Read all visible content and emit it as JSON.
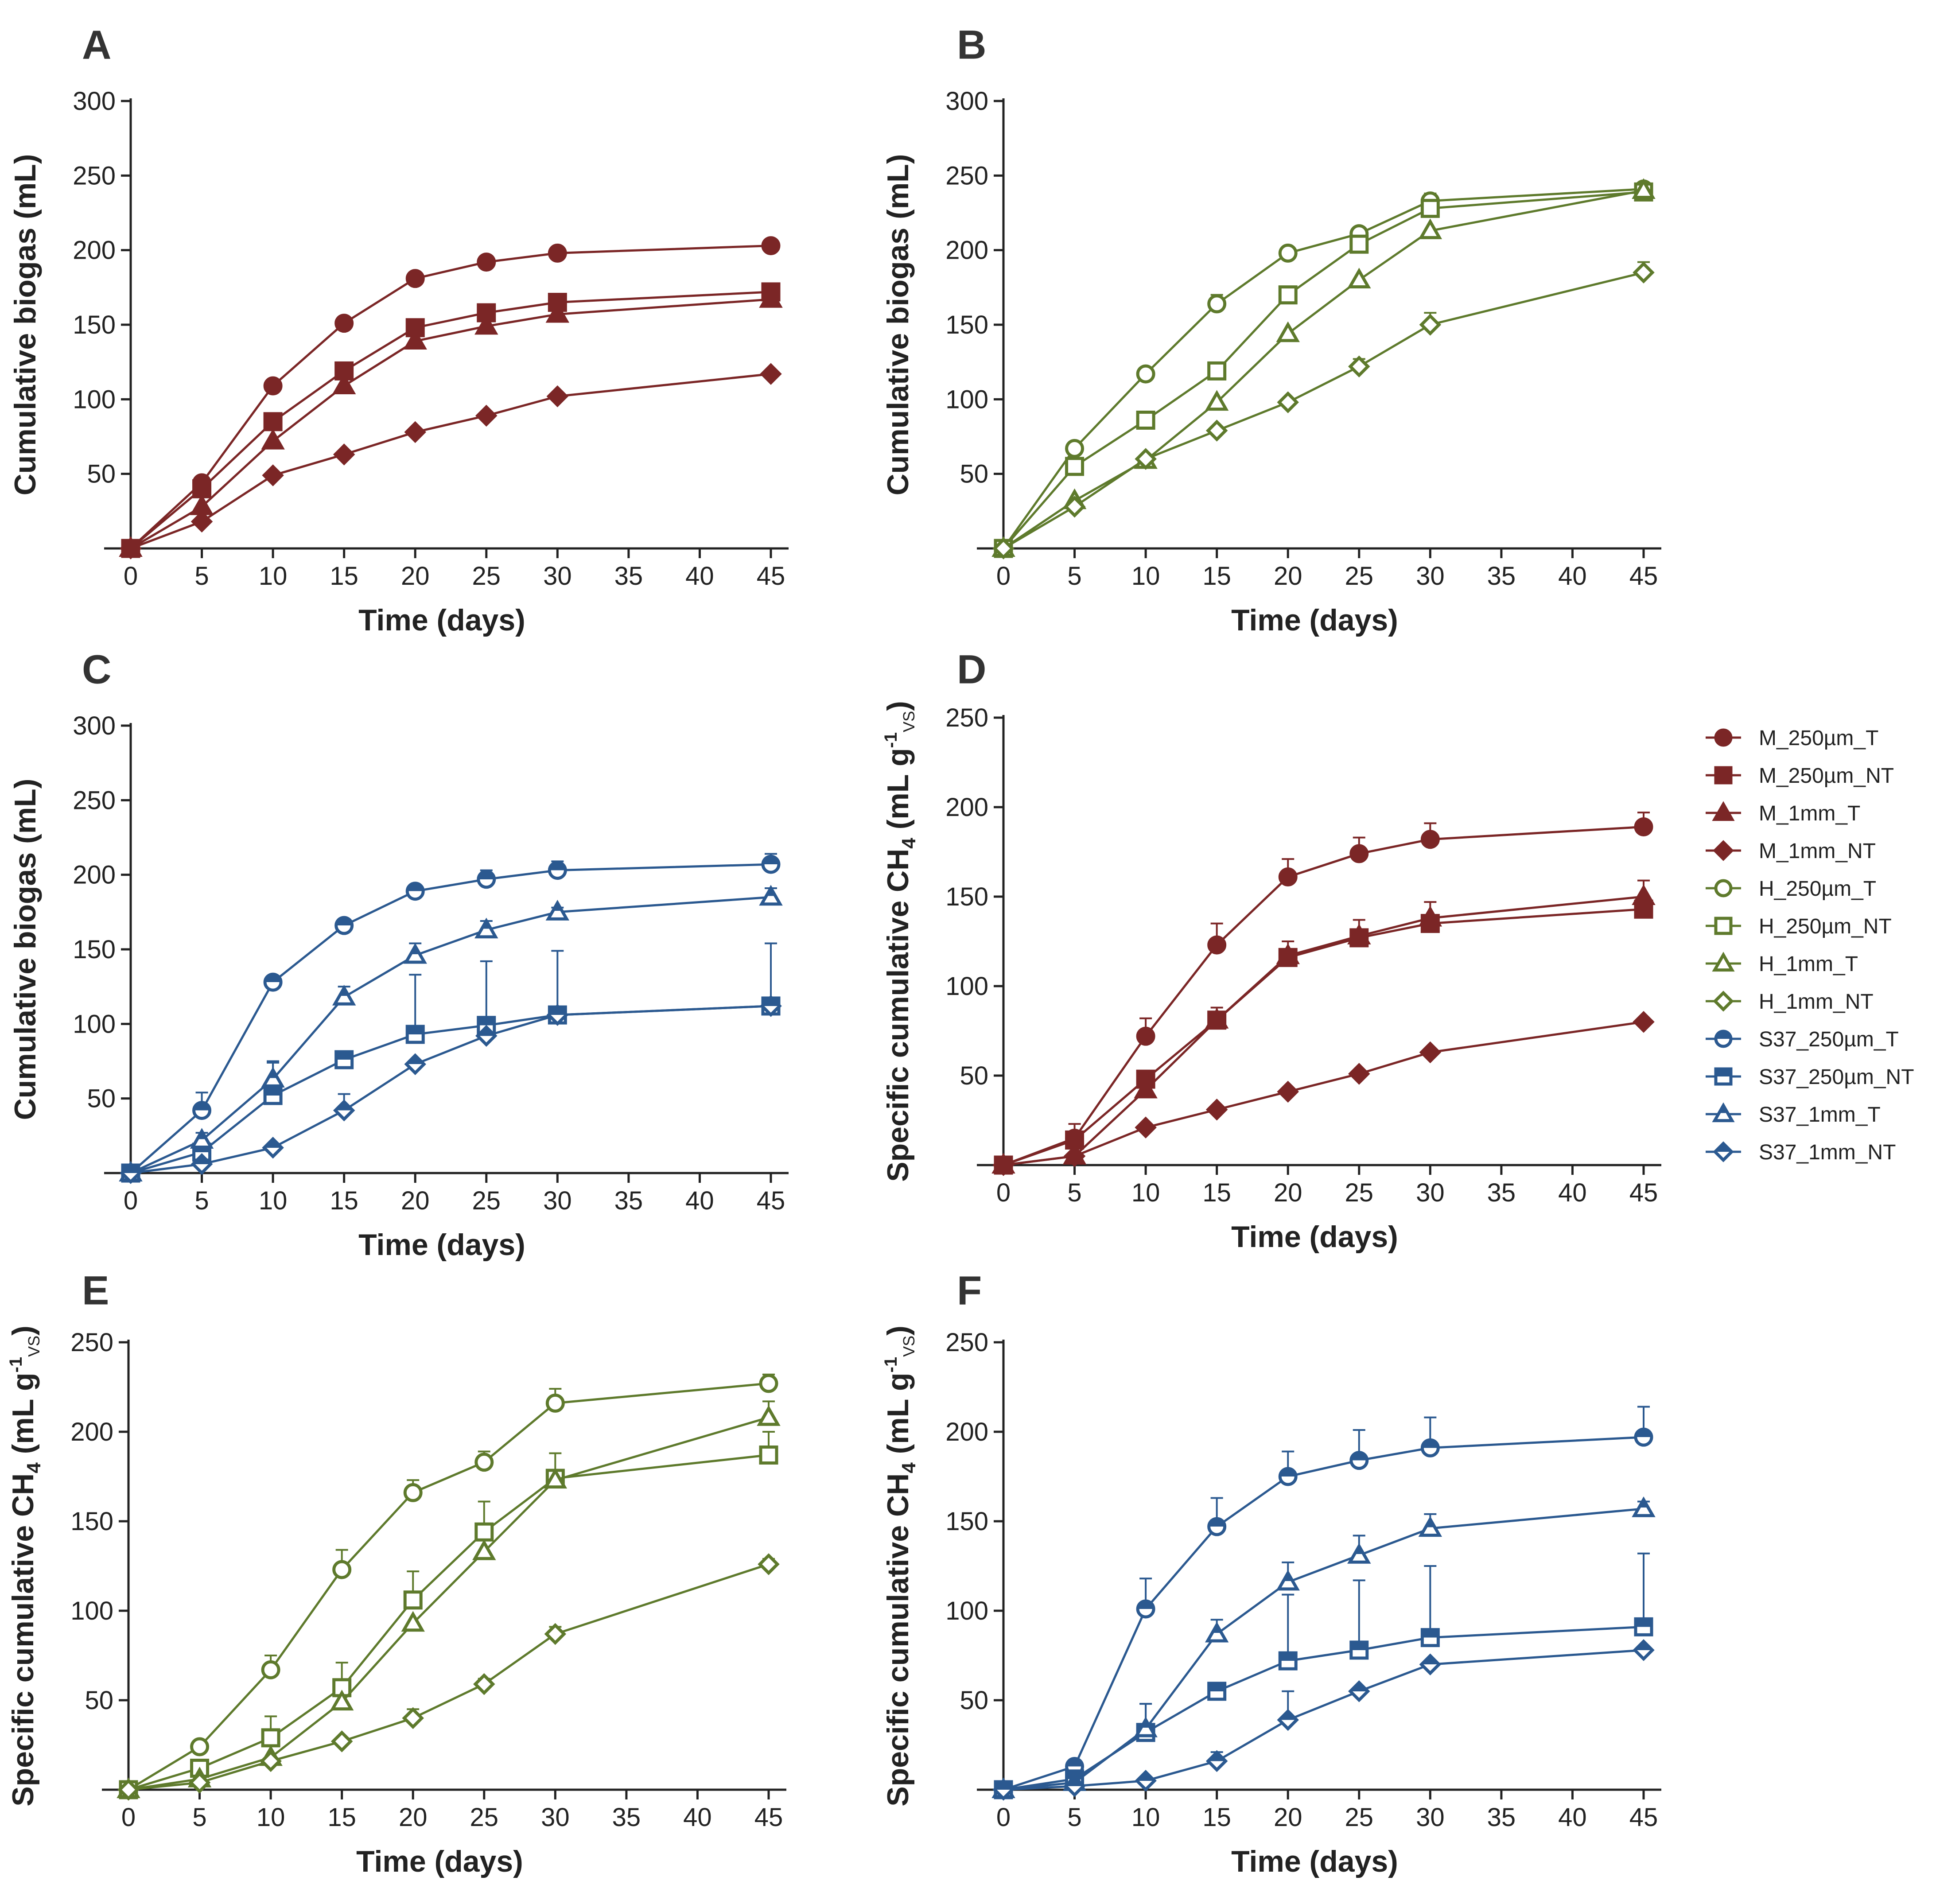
{
  "chart_data": [
    {
      "panel": "A",
      "type": "line",
      "title": "A",
      "xlabel": "Time (days)",
      "ylabel": "Cumulative biogas (mL)",
      "ylabel_sub": "",
      "xlim": [
        0,
        45
      ],
      "ylim": [
        0,
        300
      ],
      "xticks": [
        "0",
        "5",
        "10",
        "15",
        "20",
        "25",
        "30",
        "35",
        "40",
        "45"
      ],
      "yticks": [
        "50",
        "100",
        "150",
        "200",
        "250",
        "300"
      ],
      "x": [
        0,
        5,
        10,
        15,
        20,
        25,
        30,
        45
      ],
      "series": [
        {
          "name": "M_250µm_T",
          "color": "#7b2626",
          "marker": "circle",
          "fill": "solid",
          "values": [
            0,
            44,
            109,
            151,
            181,
            192,
            198,
            203
          ]
        },
        {
          "name": "M_250µm_NT",
          "color": "#7b2626",
          "marker": "square",
          "fill": "solid",
          "values": [
            0,
            40,
            85,
            119,
            148,
            158,
            165,
            172
          ]
        },
        {
          "name": "M_1mm_T",
          "color": "#7b2626",
          "marker": "triangle",
          "fill": "solid",
          "values": [
            0,
            28,
            72,
            109,
            139,
            149,
            157,
            167
          ]
        },
        {
          "name": "M_1mm_NT",
          "color": "#7b2626",
          "marker": "diamond",
          "fill": "solid",
          "values": [
            0,
            18,
            49,
            63,
            78,
            89,
            102,
            117
          ]
        }
      ]
    },
    {
      "panel": "B",
      "type": "line",
      "title": "B",
      "xlabel": "Time (days)",
      "ylabel": "Cumulative biogas (mL)",
      "ylabel_sub": "",
      "xlim": [
        0,
        45
      ],
      "ylim": [
        0,
        300
      ],
      "xticks": [
        "0",
        "5",
        "10",
        "15",
        "20",
        "25",
        "30",
        "35",
        "40",
        "45"
      ],
      "yticks": [
        "50",
        "100",
        "150",
        "200",
        "250",
        "300"
      ],
      "x": [
        0,
        5,
        10,
        15,
        20,
        25,
        30,
        45
      ],
      "series": [
        {
          "name": "H_250µm_T",
          "color": "#5e7a2c",
          "marker": "circle",
          "fill": "open",
          "values": [
            0,
            67,
            117,
            164,
            198,
            211,
            233,
            241
          ],
          "errors": [
            0,
            2,
            4,
            6,
            3,
            4,
            5,
            3
          ]
        },
        {
          "name": "H_250µm_NT",
          "color": "#5e7a2c",
          "marker": "square",
          "fill": "open",
          "values": [
            0,
            55,
            86,
            119,
            170,
            204,
            228,
            239
          ]
        },
        {
          "name": "H_1mm_T",
          "color": "#5e7a2c",
          "marker": "triangle",
          "fill": "open",
          "values": [
            0,
            32,
            59,
            98,
            144,
            180,
            213,
            240
          ]
        },
        {
          "name": "H_1mm_NT",
          "color": "#5e7a2c",
          "marker": "diamond",
          "fill": "open",
          "values": [
            0,
            28,
            60,
            79,
            98,
            122,
            150,
            185
          ],
          "errors": [
            0,
            0,
            0,
            0,
            0,
            5,
            8,
            7
          ]
        }
      ]
    },
    {
      "panel": "C",
      "type": "line",
      "title": "C",
      "xlabel": "Time (days)",
      "ylabel": "Cumulative biogas (mL)",
      "ylabel_sub": "",
      "xlim": [
        0,
        45
      ],
      "ylim": [
        0,
        300
      ],
      "xticks": [
        "0",
        "5",
        "10",
        "15",
        "20",
        "25",
        "30",
        "35",
        "40",
        "45"
      ],
      "yticks": [
        "50",
        "100",
        "150",
        "200",
        "250",
        "300"
      ],
      "x": [
        0,
        5,
        10,
        15,
        20,
        25,
        30,
        45
      ],
      "series": [
        {
          "name": "S37_250µm_T",
          "color": "#2b5990",
          "marker": "circle",
          "fill": "half",
          "values": [
            0,
            42,
            128,
            166,
            189,
            197,
            203,
            207
          ],
          "errors": [
            0,
            12,
            3,
            4,
            4,
            6,
            6,
            7
          ]
        },
        {
          "name": "S37_250µm_NT",
          "color": "#2b5990",
          "marker": "square",
          "fill": "half",
          "values": [
            0,
            14,
            52,
            76,
            93,
            99,
            106,
            112
          ],
          "errors": [
            0,
            6,
            22,
            0,
            40,
            43,
            43,
            42
          ]
        },
        {
          "name": "S37_1mm_T",
          "color": "#2b5990",
          "marker": "triangle",
          "fill": "half",
          "values": [
            0,
            22,
            63,
            118,
            146,
            163,
            175,
            185
          ],
          "errors": [
            0,
            5,
            12,
            7,
            8,
            6,
            3,
            6
          ]
        },
        {
          "name": "S37_1mm_NT",
          "color": "#2b5990",
          "marker": "diamond",
          "fill": "half",
          "values": [
            0,
            6,
            17,
            42,
            73,
            92,
            106,
            112
          ],
          "errors": [
            0,
            0,
            0,
            11,
            0,
            0,
            0,
            0
          ]
        }
      ]
    },
    {
      "panel": "D",
      "type": "line",
      "title": "D",
      "xlabel": "Time (days)",
      "ylabel": "Specific cumulative CH",
      "ylabel_sub": "4",
      "ylabel_tail": " (mL g",
      "ylabel_sup": "-1",
      "ylabel_sub2": "VS",
      "ylabel_end": ")",
      "xlim": [
        0,
        45
      ],
      "ylim": [
        0,
        250
      ],
      "xticks": [
        "0",
        "5",
        "10",
        "15",
        "20",
        "25",
        "30",
        "35",
        "40",
        "45"
      ],
      "yticks": [
        "50",
        "100",
        "150",
        "200",
        "250"
      ],
      "x": [
        0,
        5,
        10,
        15,
        20,
        25,
        30,
        45
      ],
      "series": [
        {
          "name": "M_250µm_T",
          "color": "#7b2626",
          "marker": "circle",
          "fill": "solid",
          "values": [
            0,
            15,
            72,
            123,
            161,
            174,
            182,
            189
          ],
          "errors": [
            0,
            8,
            10,
            12,
            10,
            9,
            9,
            8
          ]
        },
        {
          "name": "M_250µm_NT",
          "color": "#7b2626",
          "marker": "square",
          "fill": "solid",
          "values": [
            0,
            14,
            48,
            81,
            116,
            127,
            135,
            143
          ]
        },
        {
          "name": "M_1mm_T",
          "color": "#7b2626",
          "marker": "triangle",
          "fill": "solid",
          "values": [
            0,
            5,
            42,
            81,
            117,
            128,
            138,
            150
          ],
          "errors": [
            0,
            0,
            6,
            7,
            8,
            9,
            9,
            9
          ]
        },
        {
          "name": "M_1mm_NT",
          "color": "#7b2626",
          "marker": "diamond",
          "fill": "solid",
          "values": [
            0,
            5,
            21,
            31,
            41,
            51,
            63,
            80
          ]
        }
      ]
    },
    {
      "panel": "E",
      "type": "line",
      "title": "E",
      "xlabel": "Time (days)",
      "ylabel": "Specific cumulative CH",
      "ylabel_sub": "4",
      "ylabel_tail": " (mL g",
      "ylabel_sup": "-1",
      "ylabel_sub2": "VS",
      "ylabel_end": ")",
      "xlim": [
        0,
        45
      ],
      "ylim": [
        0,
        250
      ],
      "xticks": [
        "0",
        "5",
        "10",
        "15",
        "20",
        "25",
        "30",
        "35",
        "40",
        "45"
      ],
      "yticks": [
        "50",
        "100",
        "150",
        "200",
        "250"
      ],
      "x": [
        0,
        5,
        10,
        15,
        20,
        25,
        30,
        45
      ],
      "series": [
        {
          "name": "H_250µm_T",
          "color": "#5e7a2c",
          "marker": "circle",
          "fill": "open",
          "values": [
            0,
            24,
            67,
            123,
            166,
            183,
            216,
            227
          ],
          "errors": [
            0,
            0,
            8,
            11,
            7,
            6,
            8,
            5
          ]
        },
        {
          "name": "H_250µm_NT",
          "color": "#5e7a2c",
          "marker": "square",
          "fill": "open",
          "values": [
            0,
            12,
            29,
            57,
            106,
            144,
            174,
            187
          ],
          "errors": [
            0,
            0,
            12,
            14,
            16,
            17,
            14,
            13
          ]
        },
        {
          "name": "H_1mm_T",
          "color": "#5e7a2c",
          "marker": "triangle",
          "fill": "open",
          "values": [
            0,
            6,
            18,
            49,
            93,
            133,
            173,
            208
          ],
          "errors": [
            0,
            0,
            0,
            0,
            0,
            0,
            0,
            9
          ]
        },
        {
          "name": "H_1mm_NT",
          "color": "#5e7a2c",
          "marker": "diamond",
          "fill": "open",
          "values": [
            0,
            4,
            16,
            27,
            40,
            59,
            87,
            126
          ],
          "errors": [
            0,
            0,
            0,
            0,
            5,
            3,
            4,
            3
          ]
        }
      ]
    },
    {
      "panel": "F",
      "type": "line",
      "title": "F",
      "xlabel": "Time (days)",
      "ylabel": "Specific cumulative CH",
      "ylabel_sub": "4",
      "ylabel_tail": " (mL g",
      "ylabel_sup": "-1",
      "ylabel_sub2": "VS",
      "ylabel_end": ")",
      "xlim": [
        0,
        45
      ],
      "ylim": [
        0,
        250
      ],
      "xticks": [
        "0",
        "5",
        "10",
        "15",
        "20",
        "25",
        "30",
        "35",
        "40",
        "45"
      ],
      "yticks": [
        "50",
        "100",
        "150",
        "200",
        "250"
      ],
      "x": [
        0,
        5,
        10,
        15,
        20,
        25,
        30,
        45
      ],
      "series": [
        {
          "name": "S37_250µm_T",
          "color": "#2b5990",
          "marker": "circle",
          "fill": "half",
          "values": [
            0,
            13,
            101,
            147,
            175,
            184,
            191,
            197
          ],
          "errors": [
            0,
            0,
            17,
            16,
            14,
            17,
            17,
            17
          ]
        },
        {
          "name": "S37_250µm_NT",
          "color": "#2b5990",
          "marker": "square",
          "fill": "half",
          "values": [
            0,
            6,
            32,
            55,
            72,
            78,
            85,
            91
          ],
          "errors": [
            0,
            0,
            16,
            0,
            37,
            39,
            40,
            41
          ]
        },
        {
          "name": "S37_1mm_T",
          "color": "#2b5990",
          "marker": "triangle",
          "fill": "half",
          "values": [
            0,
            4,
            34,
            87,
            116,
            131,
            146,
            157
          ],
          "errors": [
            0,
            0,
            14,
            8,
            11,
            11,
            8,
            4
          ]
        },
        {
          "name": "S37_1mm_NT",
          "color": "#2b5990",
          "marker": "diamond",
          "fill": "half",
          "values": [
            0,
            2,
            5,
            16,
            39,
            55,
            70,
            78
          ],
          "errors": [
            0,
            0,
            0,
            5,
            16,
            0,
            0,
            0
          ]
        }
      ]
    }
  ],
  "legend": {
    "placement": "right",
    "items": [
      {
        "label": "M_250µm_T",
        "color": "#7b2626",
        "marker": "circle",
        "fill": "solid"
      },
      {
        "label": "M_250µm_NT",
        "color": "#7b2626",
        "marker": "square",
        "fill": "solid"
      },
      {
        "label": "M_1mm_T",
        "color": "#7b2626",
        "marker": "triangle",
        "fill": "solid"
      },
      {
        "label": "M_1mm_NT",
        "color": "#7b2626",
        "marker": "diamond",
        "fill": "solid"
      },
      {
        "label": "H_250µm_T",
        "color": "#5e7a2c",
        "marker": "circle",
        "fill": "open"
      },
      {
        "label": "H_250µm_NT",
        "color": "#5e7a2c",
        "marker": "square",
        "fill": "open"
      },
      {
        "label": "H_1mm_T",
        "color": "#5e7a2c",
        "marker": "triangle",
        "fill": "open"
      },
      {
        "label": "H_1mm_NT",
        "color": "#5e7a2c",
        "marker": "diamond",
        "fill": "open"
      },
      {
        "label": "S37_250µm_T",
        "color": "#2b5990",
        "marker": "circle",
        "fill": "half"
      },
      {
        "label": "S37_250µm_NT",
        "color": "#2b5990",
        "marker": "square",
        "fill": "half"
      },
      {
        "label": "S37_1mm_T",
        "color": "#2b5990",
        "marker": "triangle",
        "fill": "half"
      },
      {
        "label": "S37_1mm_NT",
        "color": "#2b5990",
        "marker": "diamond",
        "fill": "half"
      }
    ]
  }
}
